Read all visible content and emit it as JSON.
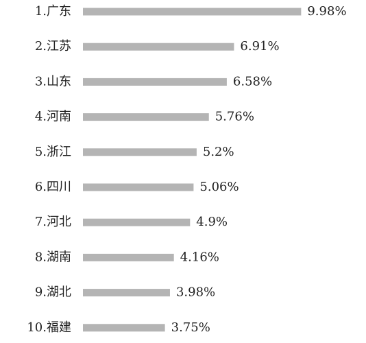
{
  "chart_data": {
    "type": "bar",
    "orientation": "horizontal",
    "categories": [
      "1.广东",
      "2.江苏",
      "3.山东",
      "4.河南",
      "5.浙江",
      "6.四川",
      "7.河北",
      "8.湖南",
      "9.湖北",
      "10.福建"
    ],
    "values": [
      9.98,
      6.91,
      6.58,
      5.76,
      5.2,
      5.06,
      4.9,
      4.16,
      3.98,
      3.75
    ],
    "value_labels": [
      "9.98%",
      "6.91%",
      "6.58%",
      "5.76%",
      "5.2%",
      "5.06%",
      "4.9%",
      "4.16%",
      "3.98%",
      "3.75%"
    ],
    "bar_color": "#b4b4b4",
    "text_color": "#222222",
    "xlim": [
      0,
      10
    ],
    "grid": false,
    "axes_visible": false
  }
}
